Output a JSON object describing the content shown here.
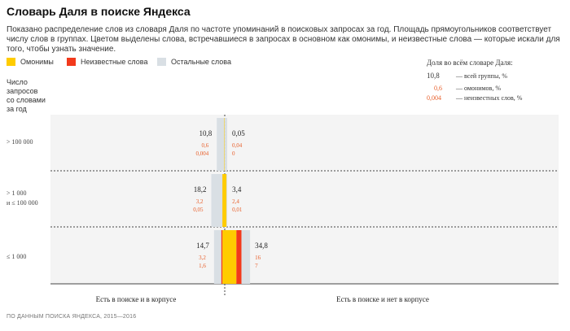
{
  "title": "Словарь Даля в поиске Яндекса",
  "description": "Показано распределение слов из словаря Даля по частоте упоминаний в поисковых запросах за год. Площадь прямоугольников соответствует числу слов в группах. Цветом выделены слова, встречавшиеся в запросах в основном как омонимы, и неизвестные слова — которые искали для того, чтобы узнать значение.",
  "legend": [
    {
      "label": "Омонимы",
      "color": "#ffcc00"
    },
    {
      "label": "Неизвестные слова",
      "color": "#f2391c"
    },
    {
      "label": "Остальные слова",
      "color": "#d9dfe4"
    }
  ],
  "note": {
    "title": "Доля во всём словаре Даля:",
    "rows": [
      {
        "value": "10,8",
        "label": "— всей группы, %",
        "color": "#222222"
      },
      {
        "value": "0,6",
        "label": "— омонимов, %",
        "color": "#e8602c"
      },
      {
        "value": "0,004",
        "label": "— неизвестных слов, %",
        "color": "#e8602c"
      }
    ]
  },
  "y_header": "Число\nзапросов\nсо словами\nза год",
  "source": "ПО ДАННЫМ ПОИСКА ЯНДЕКСА, 2015—2016",
  "colors": {
    "homonym": "#ffcc00",
    "unknown": "#f2391c",
    "other": "#d9dfe4",
    "band": "#f4f4f4",
    "accent": "#e8602c"
  },
  "chart_data": {
    "type": "bar",
    "categories": [
      "> 100 000",
      "> 1 000 и ≤ 100 000",
      "≤ 1 000"
    ],
    "columns": [
      "Есть в поиске и в корпусе",
      "Есть в поиске и нет в корпусе"
    ],
    "groups": [
      {
        "row": "> 100 000",
        "column": "Есть в поиске и в корпусе",
        "total": "10,8",
        "homonyms": "0,6",
        "unknown": "0,004",
        "total_value": 10.8,
        "homonyms_value": 0.6,
        "unknown_value": 0.004
      },
      {
        "row": "> 100 000",
        "column": "Есть в поиске и нет в корпусе",
        "total": "0,05",
        "homonyms": "0,04",
        "unknown": "0",
        "total_value": 0.05,
        "homonyms_value": 0.04,
        "unknown_value": 0
      },
      {
        "row": "> 1 000 и ≤ 100 000",
        "column": "Есть в поиске и в корпусе",
        "total": "18,2",
        "homonyms": "3,2",
        "unknown": "0,05",
        "total_value": 18.2,
        "homonyms_value": 3.2,
        "unknown_value": 0.05
      },
      {
        "row": "> 1 000 и ≤ 100 000",
        "column": "Есть в поиске и нет в корпусе",
        "total": "3,4",
        "homonyms": "2,4",
        "unknown": "0,01",
        "total_value": 3.4,
        "homonyms_value": 2.4,
        "unknown_value": 0.01
      },
      {
        "row": "≤ 1 000",
        "column": "Есть в поиске и в корпусе",
        "total": "14,7",
        "homonyms": "3,2",
        "unknown": "1,6",
        "total_value": 14.7,
        "homonyms_value": 3.2,
        "unknown_value": 1.6
      },
      {
        "row": "≤ 1 000",
        "column": "Есть в поиске и нет в корпусе",
        "total": "34,8",
        "homonyms": "16",
        "unknown": "7",
        "total_value": 34.8,
        "homonyms_value": 16,
        "unknown_value": 7
      }
    ]
  }
}
